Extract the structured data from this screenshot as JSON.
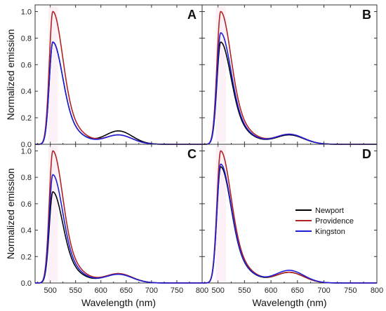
{
  "chart_data": {
    "type": "line",
    "xlabel": "Wavelength (nm)",
    "ylabel": "Normalized emission",
    "xlim": [
      470,
      800
    ],
    "ylim": [
      0,
      1.05
    ],
    "xticks": [
      500,
      550,
      600,
      650,
      700,
      750,
      800
    ],
    "yticks": [
      0.0,
      0.2,
      0.4,
      0.6,
      0.8,
      1.0
    ],
    "ytick_labels": [
      "0.0",
      "0.2",
      "0.4",
      "0.6",
      "0.8",
      "1.0"
    ],
    "legend": [
      "Newport",
      "Providence",
      "Kingston"
    ],
    "legend_position": "panel D, right-center",
    "colors": {
      "Newport": "#000000",
      "Providence": "#b22222",
      "Kingston": "#1f1fd8"
    },
    "panels": [
      {
        "letter": "A",
        "series": [
          {
            "name": "Newport",
            "peak": 0.77,
            "red_peak": 0.1
          },
          {
            "name": "Providence",
            "peak": 1.0,
            "red_peak": 0.07
          },
          {
            "name": "Kingston",
            "peak": 0.77,
            "red_peak": 0.07
          }
        ]
      },
      {
        "letter": "B",
        "series": [
          {
            "name": "Newport",
            "peak": 0.77,
            "red_peak": 0.07
          },
          {
            "name": "Providence",
            "peak": 1.0,
            "red_peak": 0.075
          },
          {
            "name": "Kingston",
            "peak": 0.84,
            "red_peak": 0.075
          }
        ]
      },
      {
        "letter": "C",
        "series": [
          {
            "name": "Newport",
            "peak": 0.69,
            "red_peak": 0.07
          },
          {
            "name": "Providence",
            "peak": 1.0,
            "red_peak": 0.07
          },
          {
            "name": "Kingston",
            "peak": 0.82,
            "red_peak": 0.065
          }
        ]
      },
      {
        "letter": "D",
        "series": [
          {
            "name": "Newport",
            "peak": 0.88,
            "red_peak": 0.08
          },
          {
            "name": "Providence",
            "peak": 1.0,
            "red_peak": 0.08
          },
          {
            "name": "Kingston",
            "peak": 0.9,
            "red_peak": 0.095
          }
        ]
      }
    ]
  }
}
